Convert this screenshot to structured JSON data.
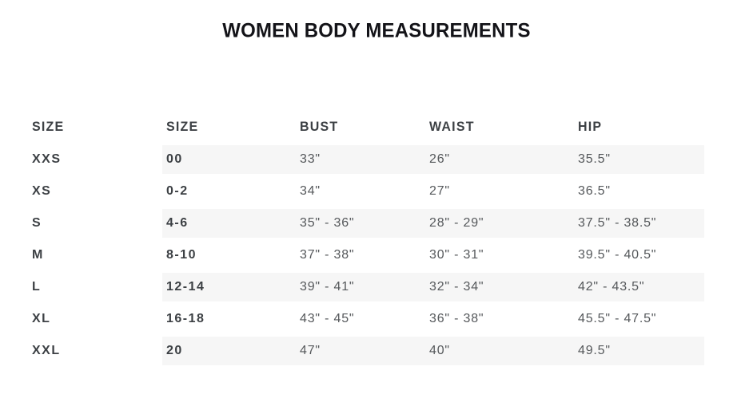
{
  "page": {
    "title": "WOMEN BODY MEASUREMENTS"
  },
  "table": {
    "columns": [
      "SIZE",
      "SIZE",
      "BUST",
      "WAIST",
      "HIP"
    ],
    "rows": [
      {
        "size_label": "XXS",
        "size_number": "00",
        "bust": "33\"",
        "waist": "26\"",
        "hip": "35.5\""
      },
      {
        "size_label": "XS",
        "size_number": "0-2",
        "bust": "34\"",
        "waist": "27\"",
        "hip": "36.5\""
      },
      {
        "size_label": "S",
        "size_number": "4-6",
        "bust": "35\" - 36\"",
        "waist": "28\" - 29\"",
        "hip": "37.5\" - 38.5\""
      },
      {
        "size_label": "M",
        "size_number": "8-10",
        "bust": "37\" - 38\"",
        "waist": "30\" - 31\"",
        "hip": "39.5\" - 40.5\""
      },
      {
        "size_label": "L",
        "size_number": "12-14",
        "bust": "39\" - 41\"",
        "waist": "32\" - 34\"",
        "hip": "42\" - 43.5\""
      },
      {
        "size_label": "XL",
        "size_number": "16-18",
        "bust": "43\" - 45\"",
        "waist": "36\" - 38\"",
        "hip": "45.5\" - 47.5\""
      },
      {
        "size_label": "XXL",
        "size_number": "20",
        "bust": "47\"",
        "waist": "40\"",
        "hip": "49.5\""
      }
    ]
  },
  "colors": {
    "stripe_background": "#f6f6f6",
    "title_text": "#131318",
    "header_text": "#3d4145",
    "bold_text": "#3c4044",
    "value_text": "#55585b",
    "page_background": "#ffffff"
  }
}
